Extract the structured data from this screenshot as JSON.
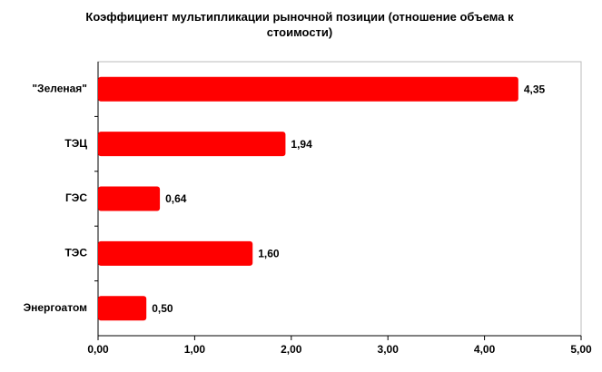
{
  "chart_data": {
    "type": "hbar",
    "title": "Коэффициент мультипликации рыночной позиции (отношение объема к стоимости)",
    "categories": [
      "\"Зеленая\"",
      "ТЭЦ",
      "ГЭС",
      "ТЭС",
      "Энергоатом"
    ],
    "values": [
      4.35,
      1.94,
      0.64,
      1.6,
      0.5
    ],
    "value_labels": [
      "4,35",
      "1,94",
      "0,64",
      "1,60",
      "0,50"
    ],
    "color": "#ff0000",
    "xlim": [
      0,
      5
    ],
    "xticks": [
      {
        "value": 0,
        "label": "0,00"
      },
      {
        "value": 1,
        "label": "1,00"
      },
      {
        "value": 2,
        "label": "2,00"
      },
      {
        "value": 3,
        "label": "3,00"
      },
      {
        "value": 4,
        "label": "4,00"
      },
      {
        "value": 5,
        "label": "5,00"
      }
    ],
    "grid": false
  }
}
